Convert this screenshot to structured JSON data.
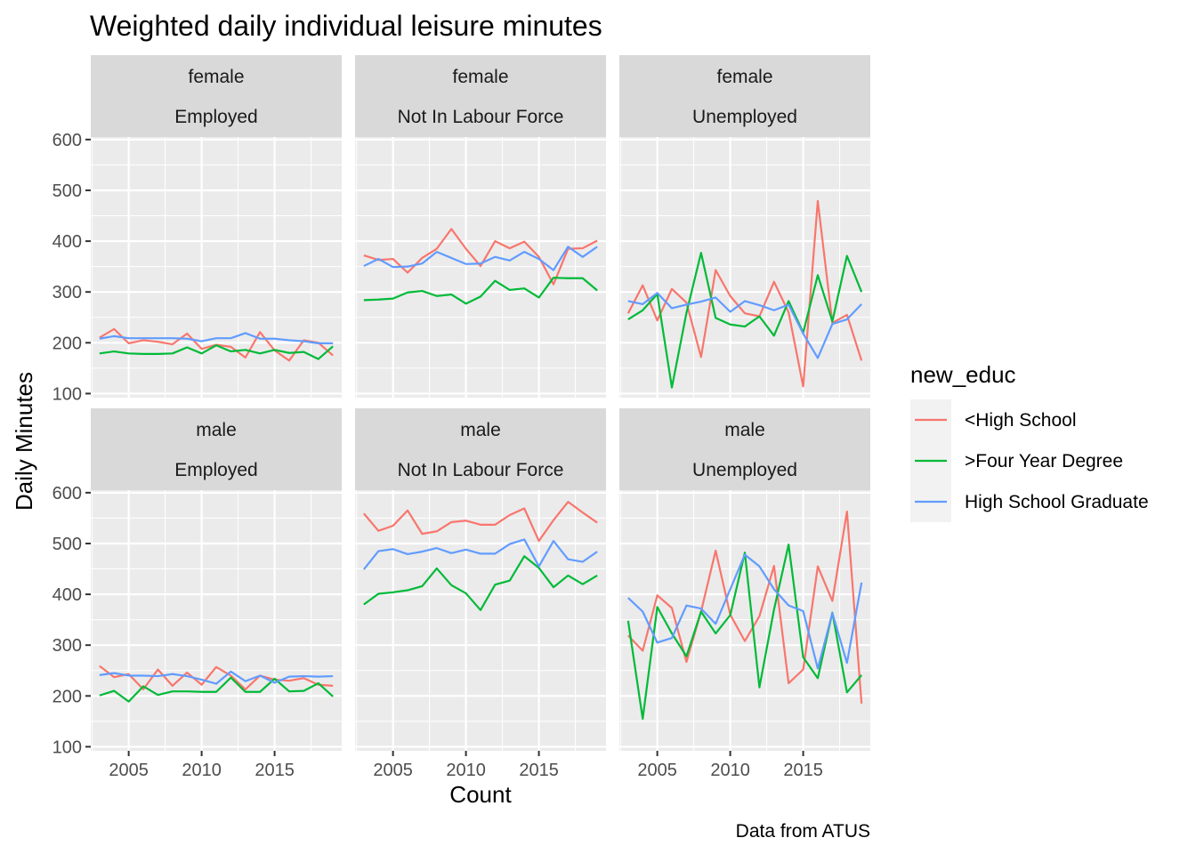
{
  "chart_data": {
    "type": "line",
    "title": "Weighted daily individual leisure minutes",
    "xlabel": "Count",
    "ylabel": "Daily Minutes",
    "caption": "Data from ATUS",
    "xlim": [
      2002.4,
      2019.6
    ],
    "ylim": [
      92,
      605
    ],
    "x_ticks": [
      2005,
      2010,
      2015
    ],
    "y_ticks": [
      100,
      200,
      300,
      400,
      500,
      600
    ],
    "grid": true,
    "legend": {
      "title": "new_educ",
      "position": "right",
      "entries": [
        {
          "label": "<High School",
          "color": "#F8766D"
        },
        {
          "label": ">Four Year Degree",
          "color": "#00BA38"
        },
        {
          "label": "High School Graduate",
          "color": "#619CFF"
        }
      ]
    },
    "years": [
      2003,
      2004,
      2005,
      2006,
      2007,
      2008,
      2009,
      2010,
      2011,
      2012,
      2013,
      2014,
      2015,
      2016,
      2017,
      2018,
      2019
    ],
    "panels": [
      {
        "row": "female",
        "col": "Employed",
        "series": [
          {
            "name": "<High School",
            "values": [
              210,
              227,
              199,
              205,
              202,
              197,
              218,
              188,
              196,
              192,
              171,
              221,
              185,
              165,
              205,
              200,
              175
            ]
          },
          {
            "name": ">Four Year Degree",
            "values": [
              179,
              183,
              179,
              178,
              178,
              179,
              191,
              179,
              195,
              183,
              186,
              179,
              186,
              180,
              182,
              168,
              193
            ]
          },
          {
            "name": "High School Graduate",
            "values": [
              208,
              213,
              209,
              209,
              209,
              209,
              208,
              203,
              209,
              209,
              219,
              208,
              208,
              205,
              203,
              199,
              199
            ]
          }
        ]
      },
      {
        "row": "female",
        "col": "Not In Labour Force",
        "series": [
          {
            "name": "<High School",
            "values": [
              372,
              363,
              365,
              338,
              367,
              385,
              424,
              385,
              351,
              400,
              386,
              399,
              369,
              315,
              385,
              386,
              401
            ]
          },
          {
            "name": ">Four Year Degree",
            "values": [
              284,
              285,
              287,
              299,
              302,
              292,
              295,
              277,
              291,
              322,
              304,
              307,
              289,
              328,
              327,
              327,
              303
            ]
          },
          {
            "name": "High School Graduate",
            "values": [
              351,
              365,
              349,
              350,
              356,
              379,
              367,
              355,
              356,
              369,
              362,
              379,
              365,
              343,
              389,
              369,
              389
            ]
          }
        ]
      },
      {
        "row": "female",
        "col": "Unemployed",
        "series": [
          {
            "name": "<High School",
            "values": [
              258,
              313,
              244,
              306,
              279,
              172,
              343,
              292,
              258,
              252,
              320,
              260,
              114,
              479,
              239,
              255,
              165
            ]
          },
          {
            "name": ">Four Year Degree",
            "values": [
              246,
              264,
              296,
              112,
              259,
              377,
              249,
              236,
              232,
              252,
              214,
              282,
              220,
              333,
              242,
              371,
              300
            ]
          },
          {
            "name": "High School Graduate",
            "values": [
              282,
              276,
              298,
              268,
              275,
              281,
              289,
              261,
              282,
              274,
              264,
              275,
              218,
              170,
              237,
              246,
              276
            ]
          }
        ]
      },
      {
        "row": "male",
        "col": "Employed",
        "series": [
          {
            "name": "<High School",
            "values": [
              259,
              237,
              243,
              213,
              252,
              220,
              246,
              222,
              257,
              240,
              213,
              240,
              232,
              230,
              235,
              222,
              220
            ]
          },
          {
            "name": ">Four Year Degree",
            "values": [
              201,
              210,
              189,
              219,
              202,
              209,
              209,
              208,
              208,
              236,
              208,
              208,
              234,
              209,
              210,
              225,
              199
            ]
          },
          {
            "name": "High School Graduate",
            "values": [
              241,
              245,
              240,
              240,
              239,
              243,
              239,
              232,
              224,
              248,
              229,
              240,
              226,
              238,
              239,
              238,
              239
            ]
          }
        ]
      },
      {
        "row": "male",
        "col": "Not In Labour Force",
        "series": [
          {
            "name": "<High School",
            "values": [
              559,
              525,
              535,
              565,
              519,
              524,
              542,
              545,
              537,
              537,
              556,
              569,
              505,
              546,
              582,
              561,
              541
            ]
          },
          {
            "name": ">Four Year Degree",
            "values": [
              380,
              401,
              404,
              408,
              416,
              451,
              418,
              402,
              369,
              419,
              427,
              475,
              452,
              414,
              437,
              420,
              437
            ]
          },
          {
            "name": "High School Graduate",
            "values": [
              449,
              485,
              489,
              479,
              484,
              491,
              481,
              488,
              480,
              480,
              499,
              508,
              455,
              505,
              469,
              464,
              484
            ]
          }
        ]
      },
      {
        "row": "male",
        "col": "Unemployed",
        "series": [
          {
            "name": "<High School",
            "values": [
              319,
              289,
              398,
              373,
              267,
              366,
              486,
              360,
              308,
              357,
              456,
              225,
              252,
              455,
              387,
              563,
              185
            ]
          },
          {
            "name": ">Four Year Degree",
            "values": [
              348,
              155,
              375,
              323,
              278,
              366,
              323,
              359,
              482,
              217,
              370,
              498,
              276,
              235,
              364,
              207,
              241
            ]
          },
          {
            "name": "High School Graduate",
            "values": [
              393,
              366,
              305,
              314,
              378,
              372,
              342,
              410,
              478,
              455,
              410,
              378,
              367,
              254,
              363,
              265,
              423
            ]
          }
        ]
      }
    ]
  }
}
